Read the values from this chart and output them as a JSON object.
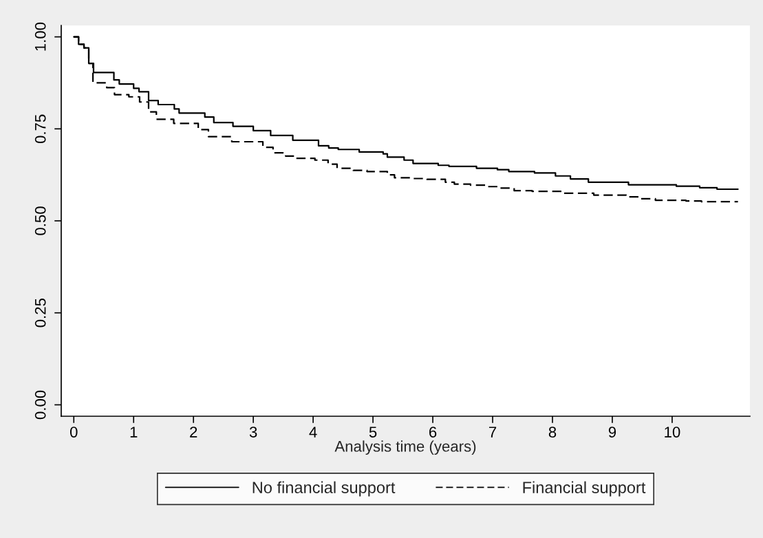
{
  "chart_data": {
    "type": "step",
    "xlabel": "Analysis time (years)",
    "xlim": [
      -0.21,
      11.3
    ],
    "ylim": [
      -0.031,
      1.031
    ],
    "xticks": [
      0,
      1,
      2,
      3,
      4,
      5,
      6,
      7,
      8,
      9,
      10
    ],
    "yticks": [
      {
        "value": 0,
        "label": "0.00"
      },
      {
        "value": 0.25,
        "label": "0.25"
      },
      {
        "value": 0.5,
        "label": "0.50"
      },
      {
        "value": 0.75,
        "label": "0.75"
      },
      {
        "value": 1,
        "label": "1.00"
      }
    ],
    "grid": false,
    "legend": "bottom",
    "marker": "none",
    "series": [
      {
        "name": "No financial support",
        "color": "#000000",
        "line_style": "solid",
        "x": [
          0,
          0.08,
          0.17,
          0.25,
          0.33,
          0.67,
          0.76,
          1.0,
          1.09,
          1.25,
          1.41,
          1.68,
          1.76,
          2.19,
          2.34,
          2.66,
          3.0,
          3.29,
          3.66,
          4.09,
          4.26,
          4.42,
          4.77,
          5.17,
          5.24,
          5.52,
          5.67,
          6.09,
          6.27,
          6.73,
          7.08,
          7.27,
          7.7,
          8.05,
          8.3,
          8.6,
          9.27,
          10.07,
          10.46,
          10.75,
          11.1
        ],
        "values": [
          1.0,
          0.98,
          0.97,
          0.928,
          0.903,
          0.883,
          0.872,
          0.86,
          0.851,
          0.827,
          0.816,
          0.804,
          0.793,
          0.782,
          0.767,
          0.757,
          0.745,
          0.732,
          0.719,
          0.704,
          0.698,
          0.694,
          0.687,
          0.682,
          0.673,
          0.665,
          0.656,
          0.651,
          0.648,
          0.643,
          0.639,
          0.634,
          0.63,
          0.622,
          0.614,
          0.605,
          0.598,
          0.594,
          0.59,
          0.586,
          0.586
        ]
      },
      {
        "name": "Financial support",
        "color": "#000000",
        "line_style": "dashed",
        "x": [
          0,
          0.08,
          0.17,
          0.25,
          0.32,
          0.55,
          0.68,
          0.92,
          1.1,
          1.25,
          1.38,
          1.67,
          2.08,
          2.25,
          2.64,
          3.16,
          3.33,
          3.54,
          3.71,
          4.03,
          4.25,
          4.4,
          4.67,
          4.9,
          5.24,
          5.36,
          5.67,
          5.9,
          6.21,
          6.36,
          6.63,
          6.9,
          7.13,
          7.36,
          7.66,
          8.16,
          8.69,
          9.23,
          9.46,
          9.72,
          10.23,
          10.49,
          11.1
        ],
        "values": [
          1.0,
          0.98,
          0.97,
          0.928,
          0.875,
          0.862,
          0.843,
          0.837,
          0.823,
          0.796,
          0.776,
          0.765,
          0.748,
          0.729,
          0.715,
          0.7,
          0.685,
          0.676,
          0.67,
          0.665,
          0.654,
          0.643,
          0.637,
          0.634,
          0.625,
          0.617,
          0.615,
          0.613,
          0.605,
          0.6,
          0.597,
          0.593,
          0.589,
          0.582,
          0.58,
          0.575,
          0.57,
          0.565,
          0.56,
          0.556,
          0.554,
          0.552,
          0.552
        ]
      }
    ]
  }
}
